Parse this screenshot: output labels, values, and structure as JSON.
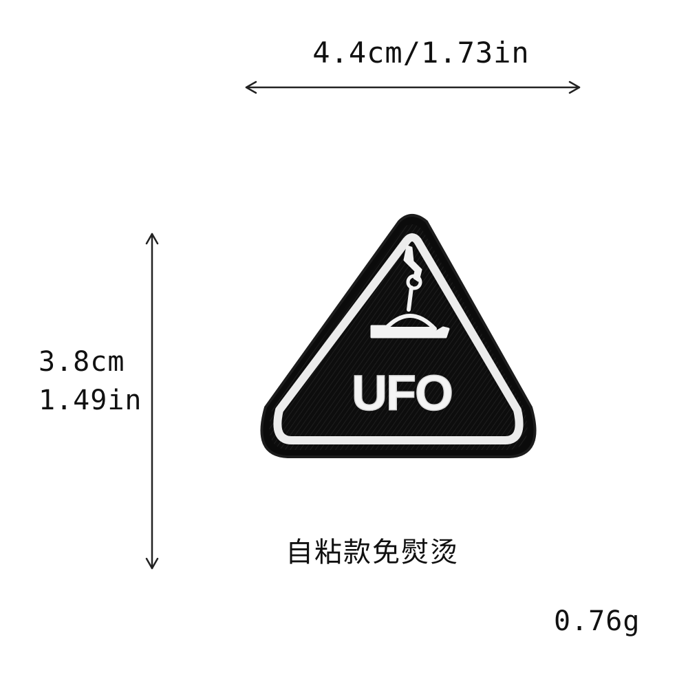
{
  "dimensions": {
    "width_label": "4.4cm/1.73in",
    "height_label_cm": "3.8cm",
    "height_label_in": "1.49in"
  },
  "patch": {
    "text": "UFO",
    "colors": {
      "fabric": "#0d0d0d",
      "stitch": "#f4f4f4",
      "outline": "#e9e9e9"
    },
    "icon": "ufo-abduction-icon"
  },
  "note": "自粘款免熨烫",
  "weight": "0.76g"
}
